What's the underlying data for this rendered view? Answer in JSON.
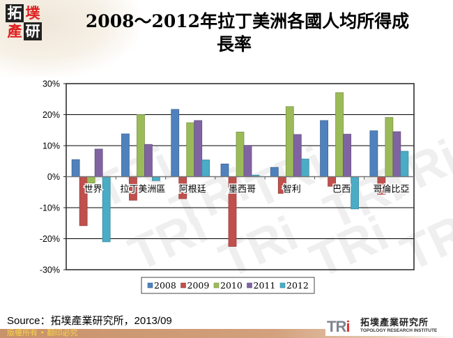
{
  "header": {
    "title_line1": "2008～2012年拉丁美洲各國人均所得成",
    "title_line2": "長率",
    "logo_chars": [
      "拓",
      "墣",
      "產",
      "研"
    ]
  },
  "footer": {
    "source": "Source：拓墣產業研究所，2013/09",
    "copyright": "版權所有 • 翻印必究",
    "org_logo_mark": "TRi",
    "org_name_cn": "拓墣產業研究所",
    "org_name_en": "TOPOLOGY RESEARCH INSTITUTE"
  },
  "chart_data": {
    "type": "bar",
    "title": "2008～2012年拉丁美洲各國人均所得成長率",
    "xlabel": "",
    "ylabel": "",
    "categories": [
      "世界",
      "拉丁美洲區",
      "阿根廷",
      "墨西哥",
      "智利",
      "巴西",
      "哥倫比亞"
    ],
    "series": [
      {
        "name": "2008",
        "color": "#4F81BD",
        "values": [
          5.5,
          13.8,
          21.7,
          4.1,
          3.0,
          18.1,
          14.8
        ]
      },
      {
        "name": "2009",
        "color": "#C0504D",
        "values": [
          -15.8,
          -7.6,
          -7.1,
          -22.5,
          -5.4,
          -3.1,
          -5.7
        ]
      },
      {
        "name": "2010",
        "color": "#9BBB59",
        "values": [
          -2.1,
          20.0,
          17.4,
          14.4,
          22.6,
          27.1,
          19.1
        ]
      },
      {
        "name": "2011",
        "color": "#8064A2",
        "values": [
          8.9,
          10.4,
          18.1,
          10.1,
          13.6,
          13.7,
          14.5
        ]
      },
      {
        "name": "2012",
        "color": "#4BACC6",
        "values": [
          -21.0,
          -1.3,
          5.4,
          0.5,
          5.7,
          -10.4,
          8.2
        ]
      }
    ],
    "ylim": [
      -30,
      30
    ],
    "yticks": [
      30,
      20,
      10,
      0,
      -10,
      -20,
      -30
    ],
    "ytick_labels": [
      "30%",
      "20%",
      "10%",
      "0%",
      "-10%",
      "-20%",
      "-30%"
    ],
    "grid": true,
    "legend_position": "bottom",
    "unit": "%"
  }
}
